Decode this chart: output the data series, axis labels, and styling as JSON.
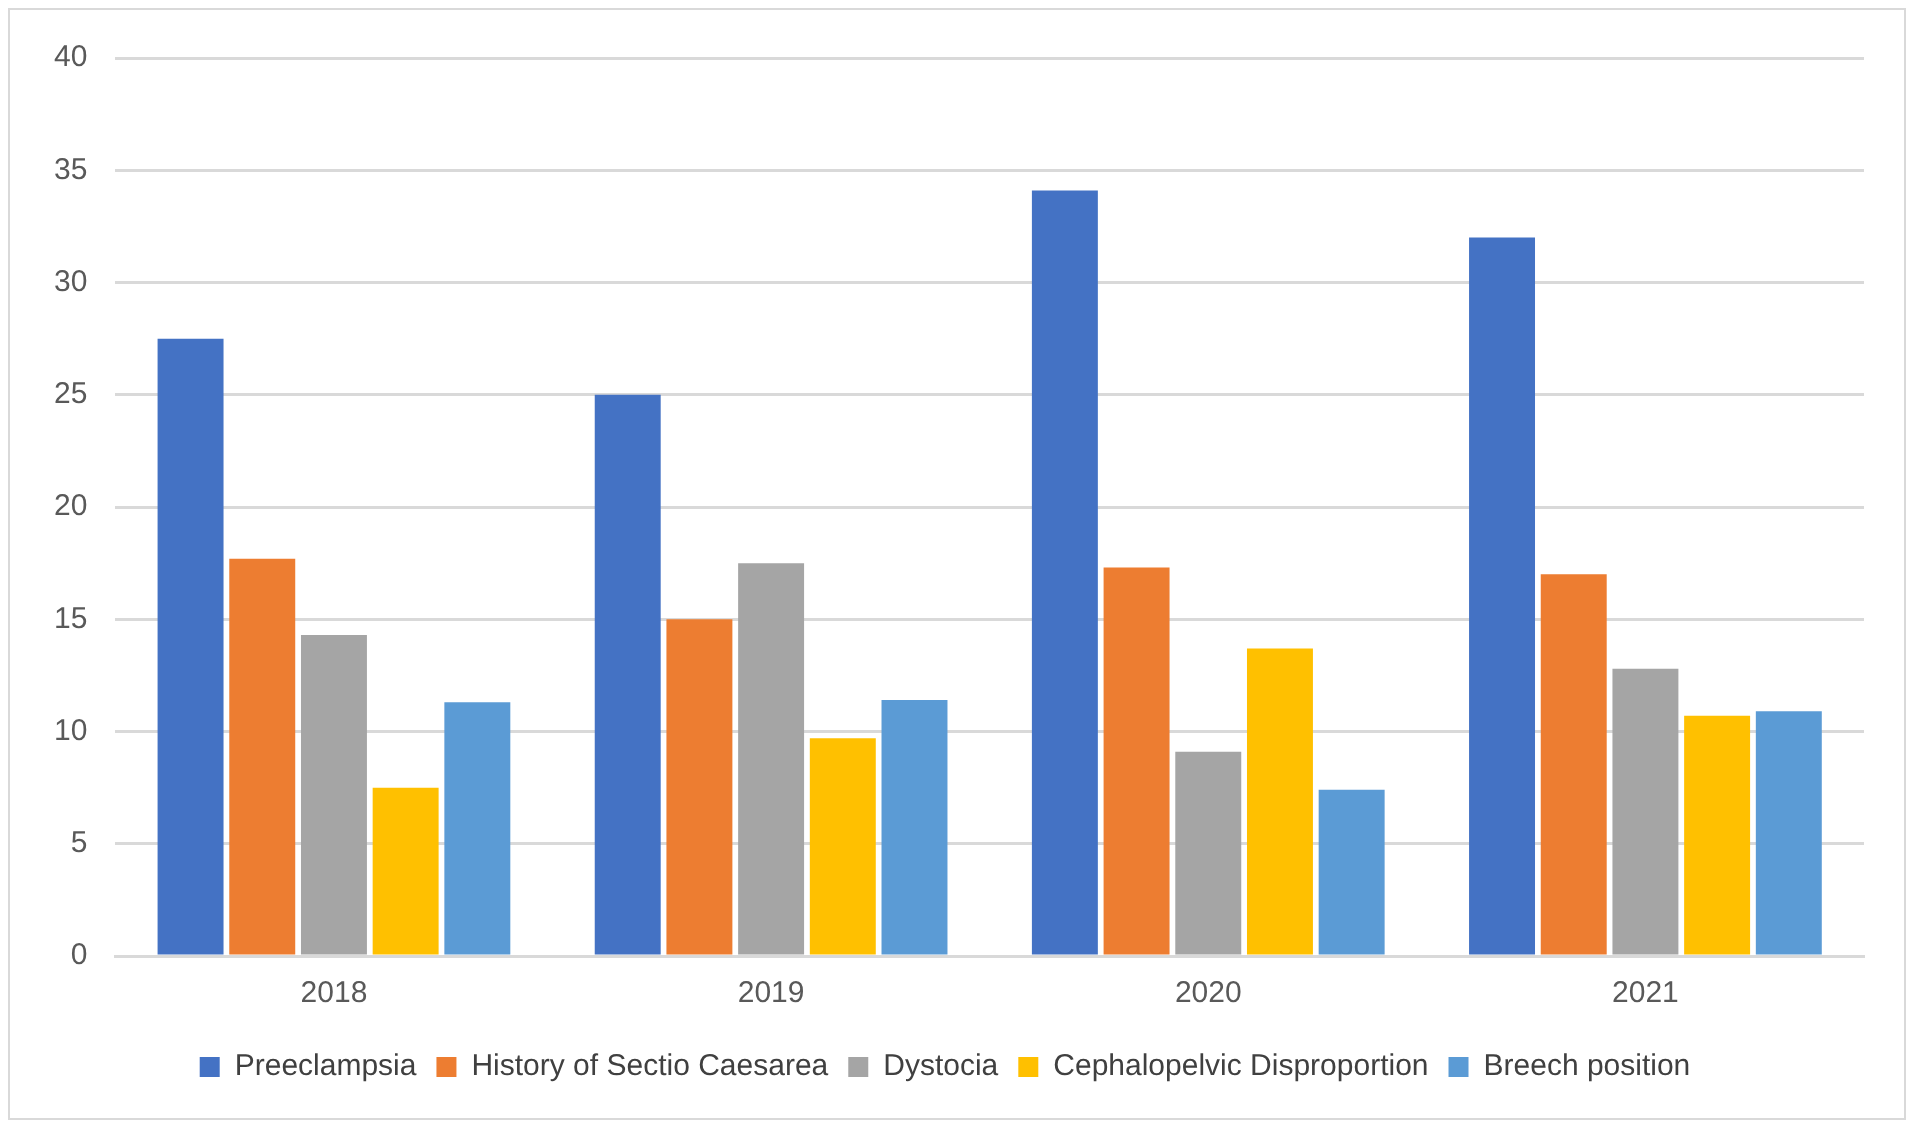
{
  "chart_data": {
    "type": "bar",
    "categories": [
      "2018",
      "2019",
      "2020",
      "2021"
    ],
    "series": [
      {
        "name": "Preeclampsia",
        "color": "#4472c4",
        "values": [
          27.5,
          25.0,
          34.1,
          32.0
        ]
      },
      {
        "name": "History of Sectio Caesarea",
        "color": "#ed7d31",
        "values": [
          17.7,
          15.0,
          17.3,
          17.0
        ]
      },
      {
        "name": "Dystocia",
        "color": "#a5a5a5",
        "values": [
          14.3,
          17.5,
          9.1,
          12.8
        ]
      },
      {
        "name": "Cephalopelvic Disproportion",
        "color": "#ffc000",
        "values": [
          7.5,
          9.7,
          13.7,
          10.7
        ]
      },
      {
        "name": "Breech position",
        "color": "#5b9bd5",
        "values": [
          11.3,
          11.4,
          7.4,
          10.9
        ]
      }
    ],
    "ylim": [
      0,
      40
    ],
    "yticks": [
      0,
      5,
      10,
      15,
      20,
      25,
      30,
      35,
      40
    ],
    "grid": "y",
    "legend": "bottom"
  }
}
